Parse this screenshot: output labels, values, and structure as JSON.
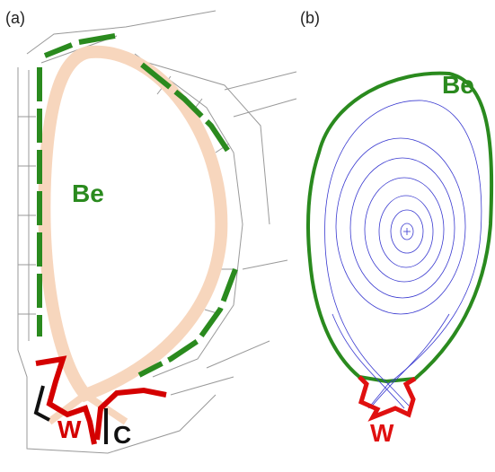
{
  "panels": [
    {
      "label": "(a)",
      "annotations": [
        "Be",
        "W",
        "C"
      ]
    },
    {
      "label": "(b)",
      "annotations": [
        "Be",
        "W"
      ]
    }
  ]
}
